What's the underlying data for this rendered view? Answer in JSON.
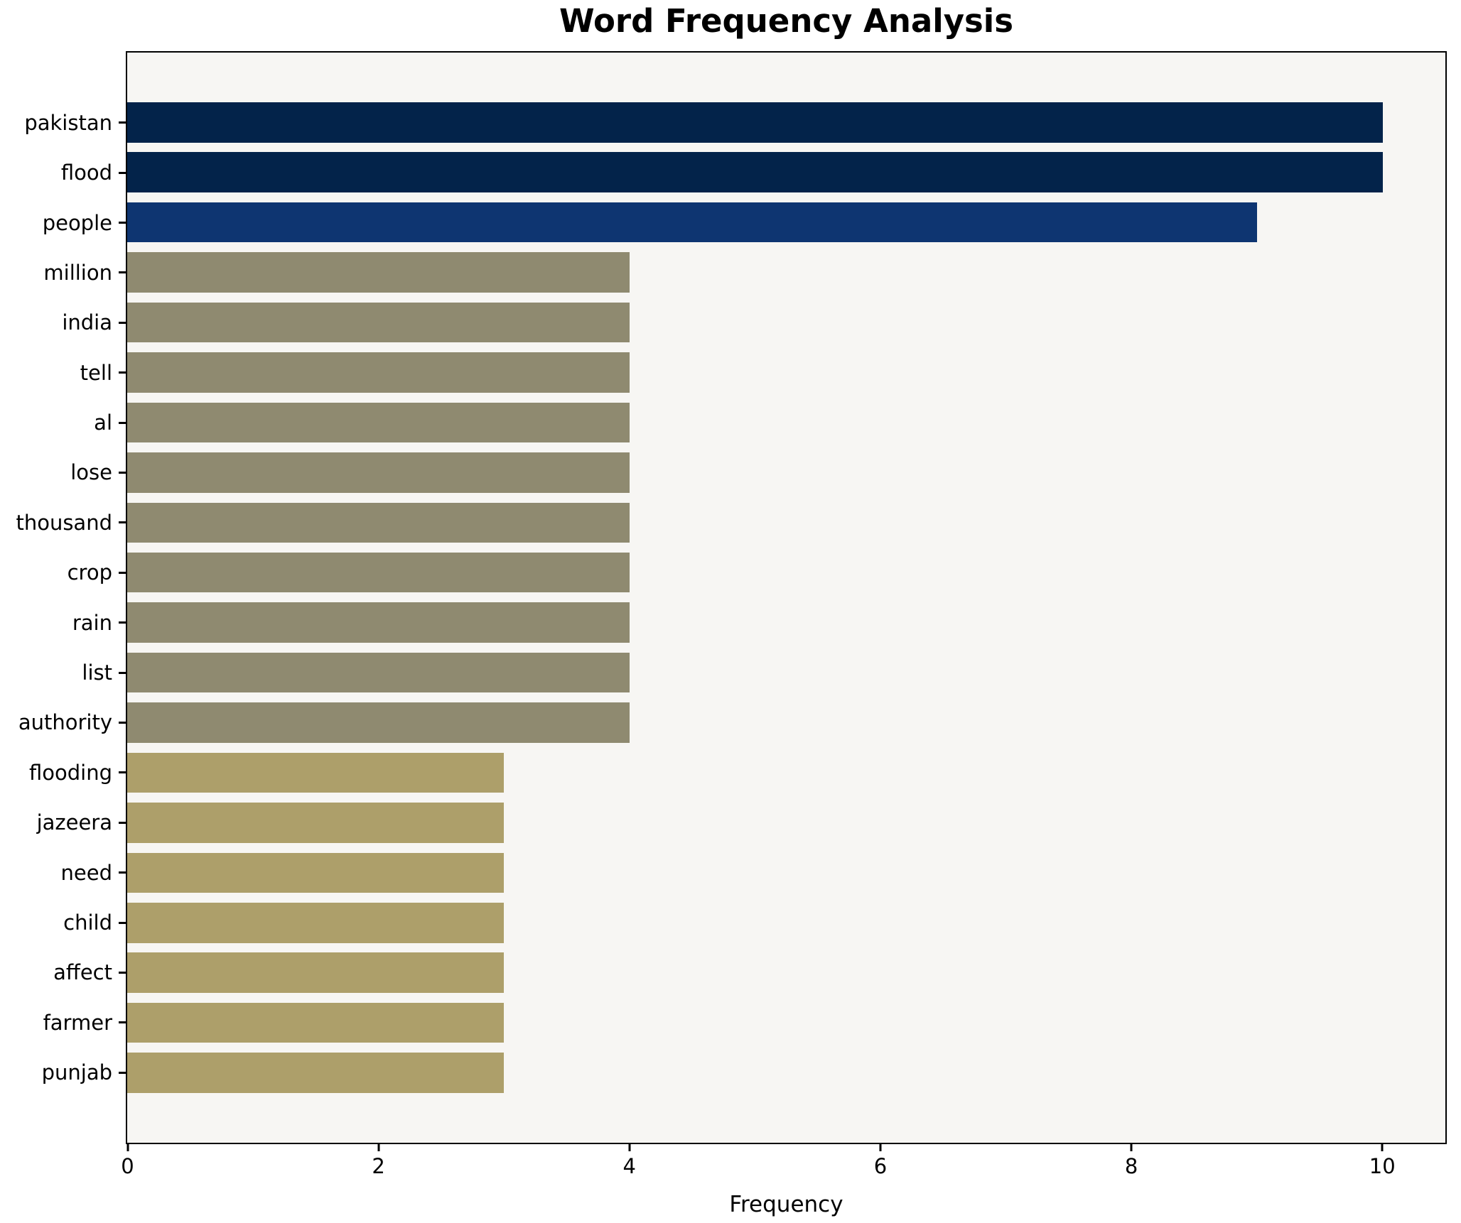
{
  "title": "Word Frequency Analysis",
  "xlabel": "Frequency",
  "chart_data": {
    "type": "bar",
    "orientation": "horizontal",
    "title": "Word Frequency Analysis",
    "xlabel": "Frequency",
    "ylabel": "",
    "categories": [
      "pakistan",
      "flood",
      "people",
      "million",
      "india",
      "tell",
      "al",
      "lose",
      "thousand",
      "crop",
      "rain",
      "list",
      "authority",
      "flooding",
      "jazeera",
      "need",
      "child",
      "affect",
      "farmer",
      "punjab"
    ],
    "values": [
      10,
      10,
      9,
      4,
      4,
      4,
      4,
      4,
      4,
      4,
      4,
      4,
      4,
      3,
      3,
      3,
      3,
      3,
      3,
      3
    ],
    "bar_colors": [
      "#03234a",
      "#03234a",
      "#0e3571",
      "#8f8a70",
      "#8f8a70",
      "#8f8a70",
      "#8f8a70",
      "#8f8a70",
      "#8f8a70",
      "#8f8a70",
      "#8f8a70",
      "#8f8a70",
      "#8f8a70",
      "#ad9f6a",
      "#ad9f6a",
      "#ad9f6a",
      "#ad9f6a",
      "#ad9f6a",
      "#ad9f6a",
      "#ad9f6a"
    ],
    "xlim": [
      0,
      10.5
    ],
    "xticks": [
      0,
      2,
      4,
      6,
      8,
      10
    ],
    "grid": false,
    "legend": null,
    "plot_background": "#f7f6f3",
    "figure_background": "#ffffff",
    "axis_color": "#000000"
  }
}
